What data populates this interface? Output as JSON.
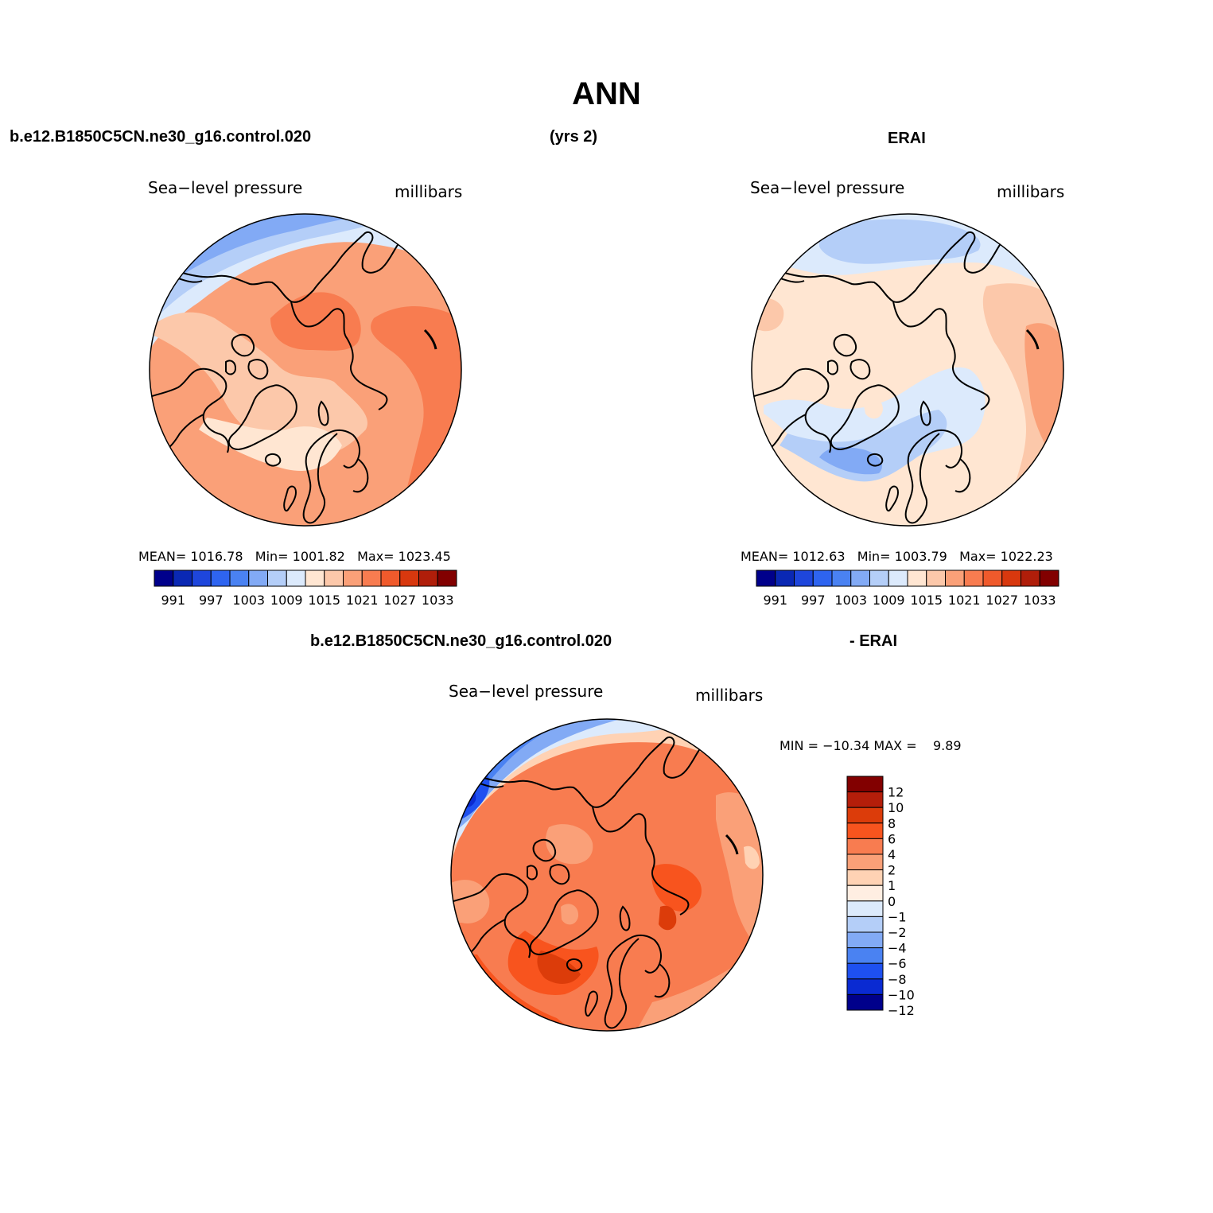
{
  "figure": {
    "title": "ANN",
    "top_left_case": "b.e12.B1850C5CN.ne30_g16.control.020",
    "top_years": "(yrs 2)",
    "top_right_case": "ERAI",
    "bottom_case": "b.e12.B1850C5CN.ne30_g16.control.020",
    "bottom_minus": "- ERAI"
  },
  "panels": [
    {
      "id": "model",
      "variable": "Sea−level pressure",
      "units": "millibars",
      "stats": {
        "mean_label": "MEAN=",
        "mean": "1016.78",
        "min_label": "Min=",
        "min": "1001.82",
        "max_label": "Max=",
        "max": "1023.45"
      }
    },
    {
      "id": "obs",
      "variable": "Sea−level pressure",
      "units": "millibars",
      "stats": {
        "mean_label": "MEAN=",
        "mean": "1012.63",
        "min_label": "Min=",
        "min": "1003.79",
        "max_label": "Max=",
        "max": "1022.23"
      }
    },
    {
      "id": "diff",
      "variable": "Sea−level pressure",
      "units": "millibars",
      "stats": {
        "min_label": "MIN =",
        "min": "−10.34",
        "max_label": "MAX =",
        "max": "9.89"
      }
    }
  ],
  "colorbars": {
    "absolute": {
      "colors": [
        "#00008b",
        "#0a28b4",
        "#1e46dc",
        "#2e64f0",
        "#4a82f2",
        "#82aaf5",
        "#b4cef8",
        "#dceafc",
        "#ffe6d2",
        "#fcc8aa",
        "#faa078",
        "#f87c50",
        "#f05a2c",
        "#d8380e",
        "#b01e0a",
        "#820000"
      ],
      "labels": [
        "991",
        "997",
        "1003",
        "1009",
        "1015",
        "1021",
        "1027",
        "1033"
      ]
    },
    "difference": {
      "colors": [
        "#820000",
        "#b41e0a",
        "#dc3c0a",
        "#f8541e",
        "#f87c50",
        "#faa078",
        "#ffd2b4",
        "#ffeee2",
        "#dceafc",
        "#b4cef8",
        "#82aaf5",
        "#4a82f2",
        "#1e50f0",
        "#0a2ad2",
        "#00008b"
      ],
      "labels": [
        "12",
        "10",
        "8",
        "6",
        "4",
        "2",
        "1",
        "0",
        "−1",
        "−2",
        "−4",
        "−6",
        "−8",
        "−10",
        "−12"
      ]
    }
  }
}
